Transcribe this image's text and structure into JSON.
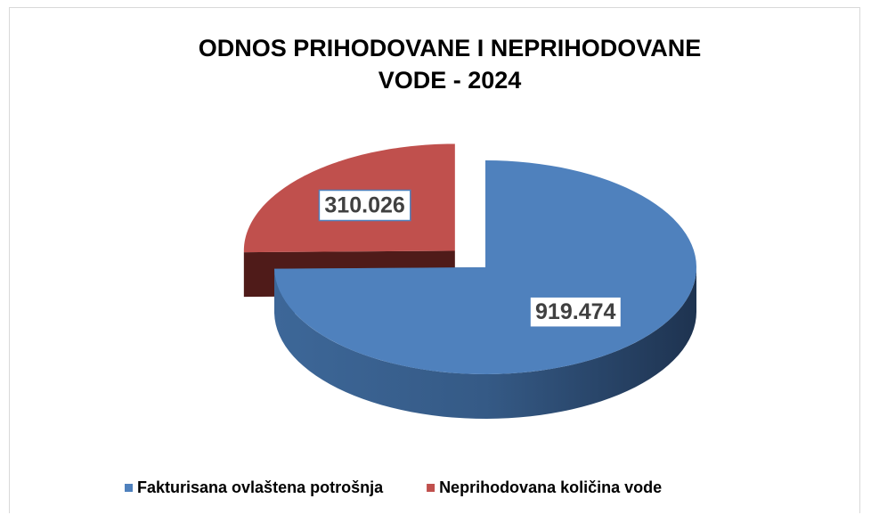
{
  "chart_data": {
    "type": "pie3d",
    "title": "ODNOS PRIHODOVANE I NEPRIHODOVANE VODE - 2024",
    "categories": [
      "Fakturisana ovlaštena potrošnja",
      "Neprihodovana količina vode"
    ],
    "values": [
      919474,
      310026
    ],
    "value_labels": [
      "919.474",
      "310.026"
    ],
    "colors": [
      "#4f81bd",
      "#c0504d"
    ],
    "exploded": [
      false,
      true
    ],
    "legend": "bottom"
  }
}
